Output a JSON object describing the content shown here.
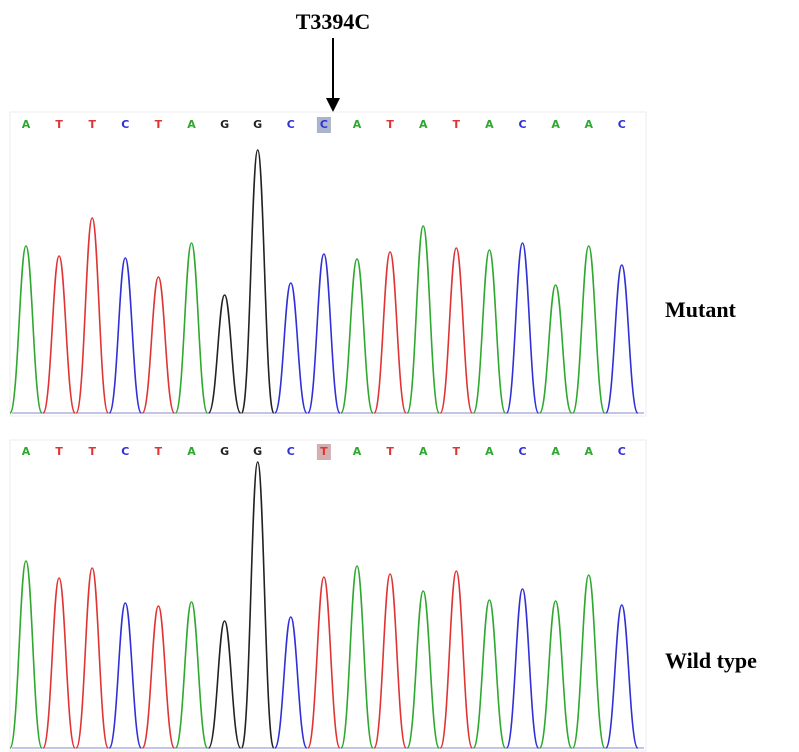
{
  "annotation": "T3394C",
  "base_colors": {
    "A": "#2ea82e",
    "T": "#e03434",
    "C": "#3030d6",
    "G": "#222222"
  },
  "panels": [
    {
      "label": "Mutant",
      "highlight": 9,
      "bases": [
        "A",
        "T",
        "T",
        "C",
        "T",
        "A",
        "G",
        "G",
        "C",
        "C",
        "A",
        "T",
        "A",
        "T",
        "A",
        "C",
        "A",
        "A",
        "C"
      ],
      "peak_heights": [
        167,
        157,
        195,
        155,
        136,
        170,
        118,
        263,
        130,
        159,
        154,
        161,
        187,
        165,
        163,
        170,
        128,
        167,
        148
      ]
    },
    {
      "label": "Wild type",
      "highlight": 9,
      "bases": [
        "A",
        "T",
        "T",
        "C",
        "T",
        "A",
        "G",
        "G",
        "C",
        "T",
        "A",
        "T",
        "A",
        "T",
        "A",
        "C",
        "A",
        "A",
        "C"
      ],
      "peak_heights": [
        187,
        170,
        180,
        145,
        142,
        146,
        127,
        286,
        131,
        171,
        182,
        174,
        157,
        177,
        148,
        159,
        147,
        173,
        143
      ]
    }
  ]
}
